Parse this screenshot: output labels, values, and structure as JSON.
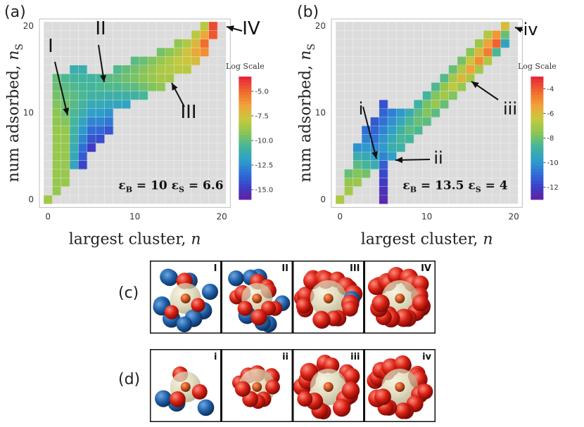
{
  "figure_labels": {
    "a": "(a)",
    "b": "(b)",
    "c": "(c)",
    "d": "(d)"
  },
  "chart_data": [
    {
      "panel": "(a)",
      "type": "heatmap",
      "xlabel": "largest cluster, n",
      "ylabel": "num adsorbed, n_S",
      "xlabel_text": "largest cluster, ",
      "xlabel_var": "n",
      "ylabel_text": "num adsorbed, ",
      "ylabel_var": "n",
      "ylabel_sub": "S",
      "xlim": [
        0,
        20
      ],
      "ylim": [
        0,
        20
      ],
      "xticks": [
        "0",
        "10",
        "20"
      ],
      "yticks": [
        "0",
        "10",
        "20"
      ],
      "colorbar": {
        "title": "Log Scale",
        "min": -16,
        "max": -3.5,
        "ticks": [
          -5.0,
          -7.5,
          -10.0,
          -12.5,
          -15.0
        ],
        "tick_labels": [
          "-5.0",
          "-7.5",
          "-10.0",
          "-12.5",
          "-15.0"
        ]
      },
      "params": {
        "epsB": "10",
        "epsS": "6.6"
      },
      "annotations": [
        {
          "label": "I",
          "x": 2,
          "y": 10
        },
        {
          "label": "II",
          "x": 6,
          "y": 14
        },
        {
          "label": "III",
          "x": 14,
          "y": 14
        },
        {
          "label": "IV",
          "x": 20,
          "y": 20
        }
      ],
      "cells": [
        [
          0,
          0,
          -8.5
        ],
        [
          1,
          1,
          -8.8
        ],
        [
          1,
          2,
          -8.8
        ],
        [
          1,
          3,
          -8.8
        ],
        [
          1,
          4,
          -8.8
        ],
        [
          1,
          5,
          -8.8
        ],
        [
          1,
          6,
          -8.8
        ],
        [
          1,
          7,
          -8.8
        ],
        [
          1,
          8,
          -8.8
        ],
        [
          1,
          9,
          -9.0
        ],
        [
          1,
          10,
          -9.0
        ],
        [
          1,
          11,
          -9.3
        ],
        [
          1,
          12,
          -9.5
        ],
        [
          1,
          13,
          -9.7
        ],
        [
          1,
          14,
          -9.8
        ],
        [
          2,
          2,
          -8.8
        ],
        [
          2,
          3,
          -8.8
        ],
        [
          2,
          4,
          -8.8
        ],
        [
          2,
          5,
          -8.8
        ],
        [
          2,
          6,
          -8.8
        ],
        [
          2,
          7,
          -8.8
        ],
        [
          2,
          8,
          -8.8
        ],
        [
          2,
          9,
          -9.2
        ],
        [
          2,
          10,
          -9.6
        ],
        [
          2,
          11,
          -9.6
        ],
        [
          2,
          12,
          -9.8
        ],
        [
          2,
          13,
          -10.0
        ],
        [
          2,
          14,
          -10.3
        ],
        [
          3,
          4,
          -11.5
        ],
        [
          3,
          5,
          -11.3
        ],
        [
          3,
          6,
          -11.1
        ],
        [
          3,
          7,
          -10.9
        ],
        [
          3,
          8,
          -10.7
        ],
        [
          3,
          9,
          -10.5
        ],
        [
          3,
          10,
          -10.3
        ],
        [
          3,
          11,
          -10.1
        ],
        [
          3,
          12,
          -10.0
        ],
        [
          3,
          13,
          -10.2
        ],
        [
          3,
          14,
          -10.5
        ],
        [
          3,
          15,
          -11.0
        ],
        [
          4,
          4,
          -14.5
        ],
        [
          4,
          5,
          -13.8
        ],
        [
          4,
          6,
          -13.2
        ],
        [
          4,
          7,
          -12.6
        ],
        [
          4,
          8,
          -12.0
        ],
        [
          4,
          9,
          -11.5
        ],
        [
          4,
          10,
          -11.0
        ],
        [
          4,
          11,
          -10.6
        ],
        [
          4,
          12,
          -10.3
        ],
        [
          4,
          13,
          -10.4
        ],
        [
          4,
          14,
          -10.6
        ],
        [
          4,
          15,
          -11.0
        ],
        [
          5,
          6,
          -14.8
        ],
        [
          5,
          7,
          -14.0
        ],
        [
          5,
          8,
          -13.3
        ],
        [
          5,
          9,
          -12.6
        ],
        [
          5,
          10,
          -11.8
        ],
        [
          5,
          11,
          -11.2
        ],
        [
          5,
          12,
          -10.7
        ],
        [
          5,
          13,
          -10.5
        ],
        [
          5,
          14,
          -10.6
        ],
        [
          6,
          7,
          -14.2
        ],
        [
          6,
          8,
          -13.4
        ],
        [
          6,
          9,
          -12.6
        ],
        [
          6,
          10,
          -11.9
        ],
        [
          6,
          11,
          -11.2
        ],
        [
          6,
          12,
          -10.7
        ],
        [
          6,
          13,
          -10.3
        ],
        [
          6,
          14,
          -10.4
        ],
        [
          7,
          8,
          -14.0
        ],
        [
          7,
          9,
          -13.0
        ],
        [
          7,
          10,
          -12.2
        ],
        [
          7,
          11,
          -11.4
        ],
        [
          7,
          12,
          -10.8
        ],
        [
          7,
          13,
          -10.2
        ],
        [
          7,
          14,
          -10.0
        ],
        [
          8,
          11,
          -11.5
        ],
        [
          8,
          12,
          -10.8
        ],
        [
          8,
          13,
          -10.2
        ],
        [
          8,
          14,
          -9.9
        ],
        [
          8,
          15,
          -10.2
        ],
        [
          9,
          11,
          -11.6
        ],
        [
          9,
          12,
          -10.8
        ],
        [
          9,
          13,
          -10.0
        ],
        [
          9,
          14,
          -9.6
        ],
        [
          9,
          15,
          -9.8
        ],
        [
          10,
          12,
          -10.7
        ],
        [
          10,
          13,
          -10.0
        ],
        [
          10,
          14,
          -9.4
        ],
        [
          10,
          15,
          -9.5
        ],
        [
          10,
          16,
          -10.0
        ],
        [
          11,
          12,
          -10.4
        ],
        [
          11,
          13,
          -9.6
        ],
        [
          11,
          14,
          -9.1
        ],
        [
          11,
          15,
          -9.2
        ],
        [
          11,
          16,
          -9.7
        ],
        [
          12,
          13,
          -9.3
        ],
        [
          12,
          14,
          -8.8
        ],
        [
          12,
          15,
          -8.8
        ],
        [
          12,
          16,
          -9.3
        ],
        [
          13,
          13,
          -9.0
        ],
        [
          13,
          14,
          -8.4
        ],
        [
          13,
          15,
          -8.3
        ],
        [
          13,
          16,
          -8.8
        ],
        [
          13,
          17,
          -9.5
        ],
        [
          14,
          14,
          -8.5
        ],
        [
          14,
          15,
          -8.2
        ],
        [
          14,
          16,
          -8.3
        ],
        [
          14,
          17,
          -9.0
        ],
        [
          15,
          15,
          -8.0
        ],
        [
          15,
          16,
          -7.8
        ],
        [
          15,
          17,
          -8.4
        ],
        [
          15,
          18,
          -9.0
        ],
        [
          16,
          15,
          -8.0
        ],
        [
          16,
          16,
          -7.5
        ],
        [
          16,
          17,
          -7.4
        ],
        [
          16,
          18,
          -8.2
        ],
        [
          17,
          16,
          -7.2
        ],
        [
          17,
          17,
          -6.5
        ],
        [
          17,
          18,
          -7.0
        ],
        [
          17,
          19,
          -8.0
        ],
        [
          18,
          17,
          -5.8
        ],
        [
          18,
          18,
          -5.0
        ],
        [
          18,
          19,
          -6.5
        ],
        [
          18,
          20,
          -8.0
        ],
        [
          19,
          19,
          -4.5
        ],
        [
          19,
          20,
          -4.2
        ]
      ]
    },
    {
      "panel": "(b)",
      "type": "heatmap",
      "xlabel": "largest cluster, n",
      "ylabel": "num adsorbed, n_S",
      "xlabel_text": "largest cluster, ",
      "xlabel_var": "n",
      "ylabel_text": "num adsorbed, ",
      "ylabel_var": "n",
      "ylabel_sub": "S",
      "xlim": [
        0,
        20
      ],
      "ylim": [
        0,
        20
      ],
      "xticks": [
        "0",
        "10",
        "20"
      ],
      "yticks": [
        "0",
        "10",
        "20"
      ],
      "colorbar": {
        "title": "Log Scale",
        "min": -13,
        "max": -3,
        "ticks": [
          -4,
          -6,
          -8,
          -10,
          -12
        ],
        "tick_labels": [
          "-4",
          "-6",
          "-8",
          "-10",
          "-12"
        ]
      },
      "params": {
        "epsB": "13.5",
        "epsS": "4"
      },
      "annotations": [
        {
          "label": "i",
          "x": 3,
          "y": 5
        },
        {
          "label": "ii",
          "x": 5,
          "y": 5
        },
        {
          "label": "iii",
          "x": 14,
          "y": 14
        },
        {
          "label": "iv",
          "x": 20,
          "y": 20
        }
      ],
      "cells": [
        [
          0,
          0,
          -6.8
        ],
        [
          1,
          1,
          -7.0
        ],
        [
          1,
          2,
          -7.3
        ],
        [
          1,
          3,
          -8.0
        ],
        [
          2,
          2,
          -7.2
        ],
        [
          2,
          3,
          -7.6
        ],
        [
          2,
          4,
          -8.2
        ],
        [
          2,
          5,
          -9.0
        ],
        [
          2,
          6,
          -10.0
        ],
        [
          3,
          3,
          -7.8
        ],
        [
          3,
          4,
          -8.6
        ],
        [
          3,
          5,
          -9.2
        ],
        [
          3,
          6,
          -9.8
        ],
        [
          3,
          7,
          -10.3
        ],
        [
          3,
          8,
          -10.8
        ],
        [
          4,
          4,
          -9.0
        ],
        [
          4,
          5,
          -9.6
        ],
        [
          4,
          6,
          -10.2
        ],
        [
          4,
          7,
          -10.7
        ],
        [
          4,
          8,
          -11.0
        ],
        [
          4,
          9,
          -11.3
        ],
        [
          5,
          0,
          -12.5
        ],
        [
          5,
          1,
          -12.3
        ],
        [
          5,
          2,
          -12.0
        ],
        [
          5,
          3,
          -11.7
        ],
        [
          5,
          4,
          -11.2
        ],
        [
          5,
          5,
          -10.3
        ],
        [
          5,
          6,
          -9.8
        ],
        [
          5,
          7,
          -9.9
        ],
        [
          5,
          8,
          -10.3
        ],
        [
          5,
          9,
          -10.7
        ],
        [
          5,
          10,
          -11.0
        ],
        [
          5,
          11,
          -11.5
        ],
        [
          6,
          5,
          -9.6
        ],
        [
          6,
          6,
          -9.0
        ],
        [
          6,
          7,
          -9.2
        ],
        [
          6,
          8,
          -9.6
        ],
        [
          6,
          9,
          -10.0
        ],
        [
          6,
          10,
          -10.4
        ],
        [
          7,
          6,
          -8.8
        ],
        [
          7,
          7,
          -8.5
        ],
        [
          7,
          8,
          -8.8
        ],
        [
          7,
          9,
          -9.3
        ],
        [
          7,
          10,
          -9.8
        ],
        [
          8,
          7,
          -8.6
        ],
        [
          8,
          8,
          -8.2
        ],
        [
          8,
          9,
          -8.5
        ],
        [
          8,
          10,
          -9.1
        ],
        [
          9,
          8,
          -8.4
        ],
        [
          9,
          9,
          -8.0
        ],
        [
          9,
          10,
          -8.2
        ],
        [
          9,
          11,
          -8.8
        ],
        [
          10,
          9,
          -8.2
        ],
        [
          10,
          10,
          -7.6
        ],
        [
          10,
          11,
          -7.8
        ],
        [
          10,
          12,
          -8.6
        ],
        [
          11,
          10,
          -8.2
        ],
        [
          11,
          11,
          -7.2
        ],
        [
          11,
          12,
          -7.6
        ],
        [
          11,
          13,
          -8.4
        ],
        [
          12,
          11,
          -8.0
        ],
        [
          12,
          12,
          -7.0
        ],
        [
          12,
          13,
          -7.3
        ],
        [
          12,
          14,
          -8.3
        ],
        [
          13,
          12,
          -7.6
        ],
        [
          13,
          13,
          -6.5
        ],
        [
          13,
          14,
          -7.0
        ],
        [
          13,
          15,
          -8.0
        ],
        [
          14,
          13,
          -7.2
        ],
        [
          14,
          14,
          -5.8
        ],
        [
          14,
          15,
          -6.8
        ],
        [
          14,
          16,
          -7.8
        ],
        [
          15,
          14,
          -7.0
        ],
        [
          15,
          15,
          -5.2
        ],
        [
          15,
          16,
          -6.2
        ],
        [
          15,
          17,
          -7.5
        ],
        [
          16,
          15,
          -7.0
        ],
        [
          16,
          16,
          -4.8
        ],
        [
          16,
          17,
          -5.8
        ],
        [
          16,
          18,
          -7.2
        ],
        [
          17,
          16,
          -6.8
        ],
        [
          17,
          17,
          -4.5
        ],
        [
          17,
          18,
          -5.2
        ],
        [
          17,
          19,
          -6.8
        ],
        [
          18,
          17,
          -8.5
        ],
        [
          18,
          18,
          -4.0
        ],
        [
          18,
          19,
          -5.0
        ],
        [
          19,
          18,
          -9.5
        ],
        [
          19,
          19,
          -8.0
        ],
        [
          19,
          20,
          -6.0
        ]
      ]
    }
  ],
  "snapshots": {
    "c": [
      {
        "label": "I",
        "red": 3,
        "blue": 10
      },
      {
        "label": "II",
        "red": 9,
        "blue": 7
      },
      {
        "label": "III",
        "red": 18,
        "blue": 1
      },
      {
        "label": "IV",
        "red": 20,
        "blue": 0
      }
    ],
    "d": [
      {
        "label": "i",
        "red": 3,
        "blue": 3
      },
      {
        "label": "ii",
        "red": 10,
        "blue": 0
      },
      {
        "label": "iii",
        "red": 16,
        "blue": 0
      },
      {
        "label": "iv",
        "red": 20,
        "blue": 0
      }
    ]
  }
}
